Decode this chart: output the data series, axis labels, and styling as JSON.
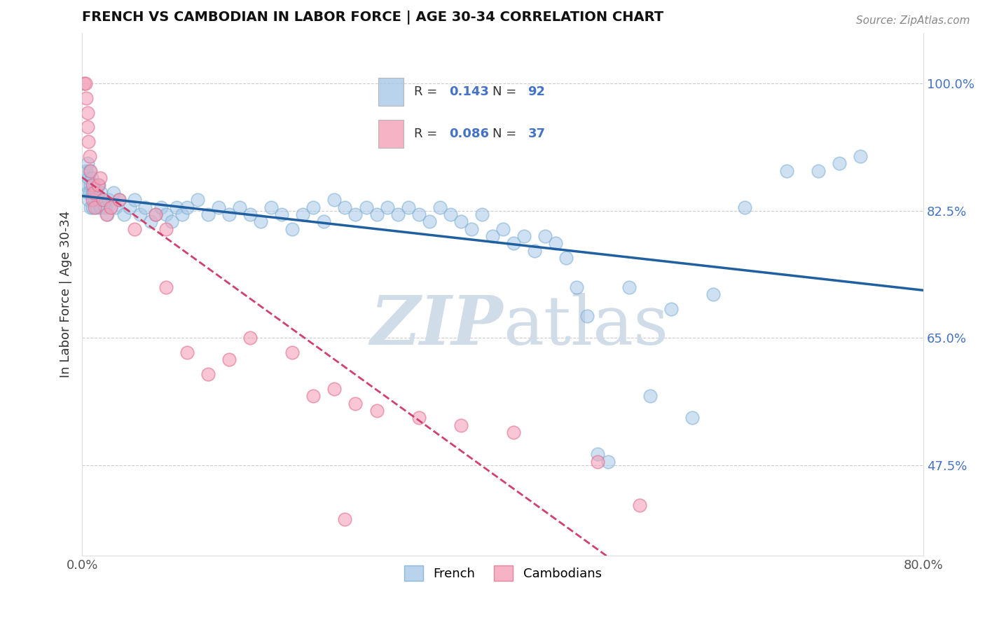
{
  "title": "FRENCH VS CAMBODIAN IN LABOR FORCE | AGE 30-34 CORRELATION CHART",
  "source_text": "Source: ZipAtlas.com",
  "ylabel": "In Labor Force | Age 30-34",
  "xlim": [
    0.0,
    80.0
  ],
  "ylim": [
    35.0,
    107.0
  ],
  "right_yticks": [
    47.5,
    65.0,
    82.5,
    100.0
  ],
  "legend_blue_r_val": "0.143",
  "legend_blue_n_val": "92",
  "legend_pink_r_val": "0.086",
  "legend_pink_n_val": "37",
  "blue_color": "#a8c8e8",
  "blue_edge_color": "#7aaed0",
  "pink_color": "#f4a0b8",
  "pink_edge_color": "#e07090",
  "blue_line_color": "#2060a0",
  "pink_line_color": "#d04070",
  "watermark_color": "#d0dce8",
  "french_x": [
    0.4,
    0.4,
    0.5,
    0.5,
    0.6,
    0.6,
    0.7,
    0.7,
    0.8,
    0.8,
    0.9,
    1.0,
    1.0,
    1.1,
    1.2,
    1.3,
    1.4,
    1.5,
    1.6,
    1.7,
    1.8,
    2.0,
    2.2,
    2.4,
    2.5,
    2.7,
    3.0,
    3.2,
    3.5,
    4.0,
    4.5,
    5.0,
    5.5,
    6.0,
    6.5,
    7.0,
    7.5,
    8.0,
    8.5,
    9.0,
    9.5,
    10.0,
    11.0,
    12.0,
    13.0,
    14.0,
    15.0,
    16.0,
    17.0,
    18.0,
    19.0,
    20.0,
    21.0,
    22.0,
    23.0,
    24.0,
    25.0,
    26.0,
    27.0,
    28.0,
    29.0,
    30.0,
    31.0,
    32.0,
    33.0,
    34.0,
    35.0,
    36.0,
    37.0,
    38.0,
    39.0,
    40.0,
    41.0,
    42.0,
    43.0,
    44.0,
    45.0,
    46.0,
    47.0,
    48.0,
    49.0,
    50.0,
    52.0,
    54.0,
    56.0,
    58.0,
    60.0,
    63.0,
    67.0,
    70.0,
    72.0,
    74.0
  ],
  "french_y": [
    88.0,
    86.0,
    89.0,
    85.0,
    87.0,
    84.0,
    88.0,
    85.0,
    86.0,
    83.0,
    87.0,
    85.0,
    83.0,
    86.0,
    84.0,
    85.0,
    83.0,
    84.0,
    86.0,
    83.0,
    85.0,
    84.0,
    83.0,
    82.0,
    84.0,
    83.0,
    85.0,
    83.0,
    84.0,
    82.0,
    83.0,
    84.0,
    82.0,
    83.0,
    81.0,
    82.0,
    83.0,
    82.0,
    81.0,
    83.0,
    82.0,
    83.0,
    84.0,
    82.0,
    83.0,
    82.0,
    83.0,
    82.0,
    81.0,
    83.0,
    82.0,
    80.0,
    82.0,
    83.0,
    81.0,
    84.0,
    83.0,
    82.0,
    83.0,
    82.0,
    83.0,
    82.0,
    83.0,
    82.0,
    81.0,
    83.0,
    82.0,
    81.0,
    80.0,
    82.0,
    79.0,
    80.0,
    78.0,
    79.0,
    77.0,
    79.0,
    78.0,
    76.0,
    72.0,
    68.0,
    49.0,
    48.0,
    72.0,
    57.0,
    69.0,
    54.0,
    71.0,
    83.0,
    88.0,
    88.0,
    89.0,
    90.0
  ],
  "cambodian_x": [
    0.2,
    0.3,
    0.4,
    0.5,
    0.5,
    0.6,
    0.7,
    0.8,
    1.0,
    1.0,
    1.1,
    1.2,
    1.5,
    1.7,
    2.0,
    2.3,
    2.7,
    3.5,
    5.0,
    7.0,
    8.0,
    10.0,
    12.0,
    14.0,
    16.0,
    20.0,
    22.0,
    24.0,
    26.0,
    28.0,
    32.0,
    36.0,
    41.0,
    49.0,
    53.0,
    8.0,
    25.0
  ],
  "cambodian_y": [
    100.0,
    100.0,
    98.0,
    96.0,
    94.0,
    92.0,
    90.0,
    88.0,
    86.0,
    84.0,
    85.0,
    83.0,
    86.0,
    87.0,
    84.0,
    82.0,
    83.0,
    84.0,
    80.0,
    82.0,
    80.0,
    63.0,
    60.0,
    62.0,
    65.0,
    63.0,
    57.0,
    58.0,
    56.0,
    55.0,
    54.0,
    53.0,
    52.0,
    48.0,
    42.0,
    72.0,
    40.0
  ]
}
